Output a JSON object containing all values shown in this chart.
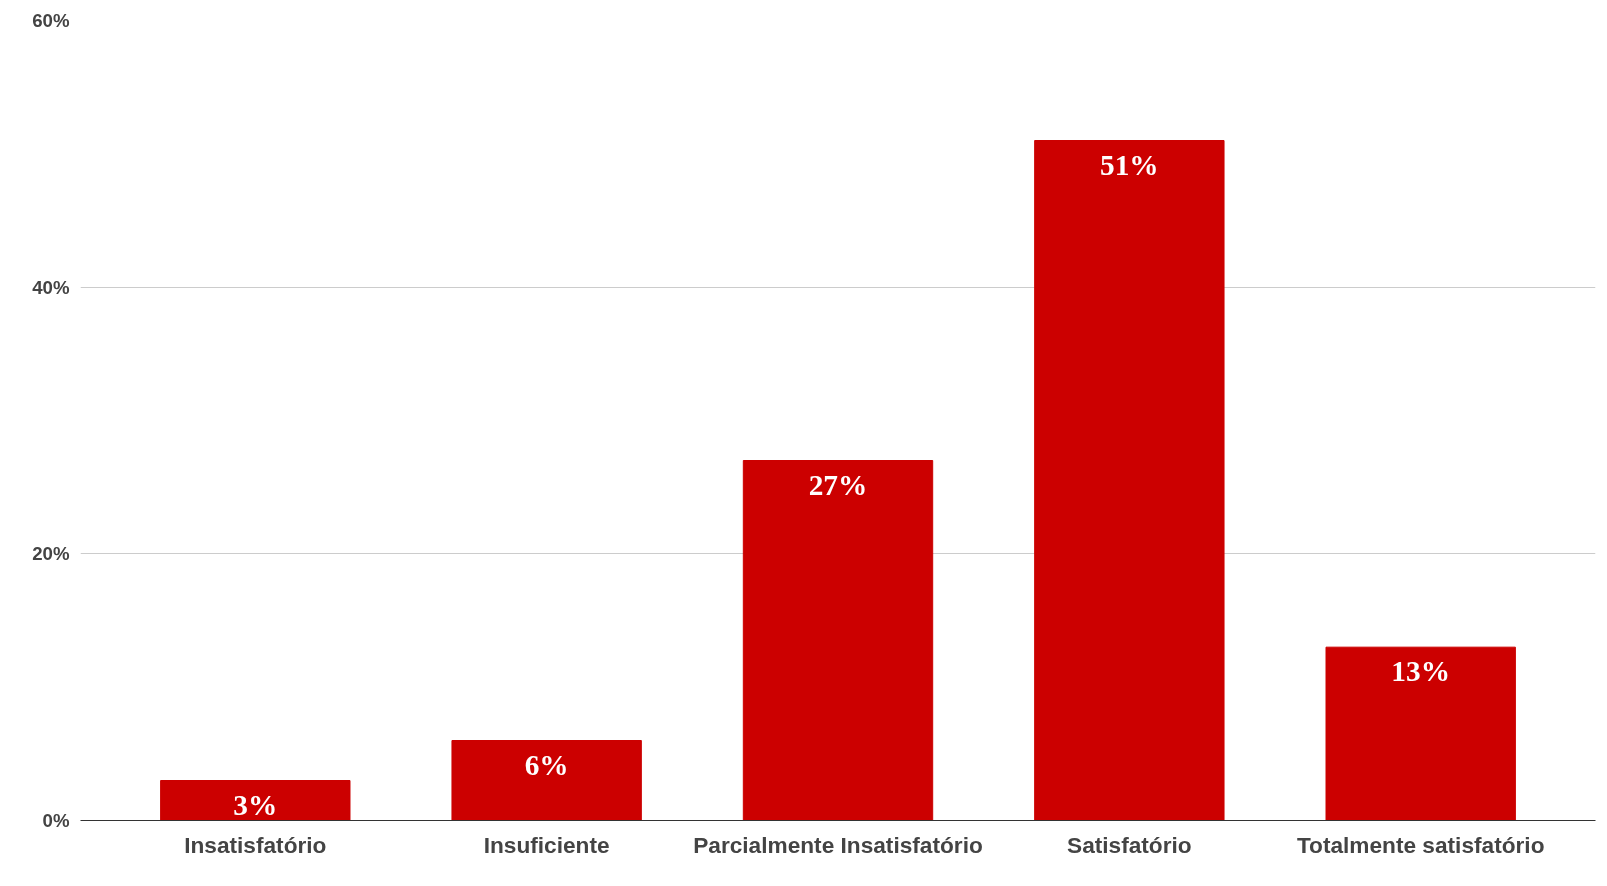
{
  "chart_data": {
    "type": "bar",
    "categories": [
      "Insatisfatório",
      "Insuficiente",
      "Parcialmente Insatisfatório",
      "Satisfatório",
      "Totalmente satisfatório"
    ],
    "values": [
      3,
      6,
      27,
      51,
      13
    ],
    "color": "#cc0000",
    "value_labels": [
      "3%",
      "6%",
      "27%",
      "51%",
      "13%"
    ],
    "ylim": [
      0,
      60
    ],
    "yticks": [
      {
        "value": 0,
        "label": "0%"
      },
      {
        "value": 20,
        "label": "20%"
      },
      {
        "value": 40,
        "label": "40%"
      },
      {
        "value": 60,
        "label": "60%"
      }
    ],
    "grid": "y"
  }
}
